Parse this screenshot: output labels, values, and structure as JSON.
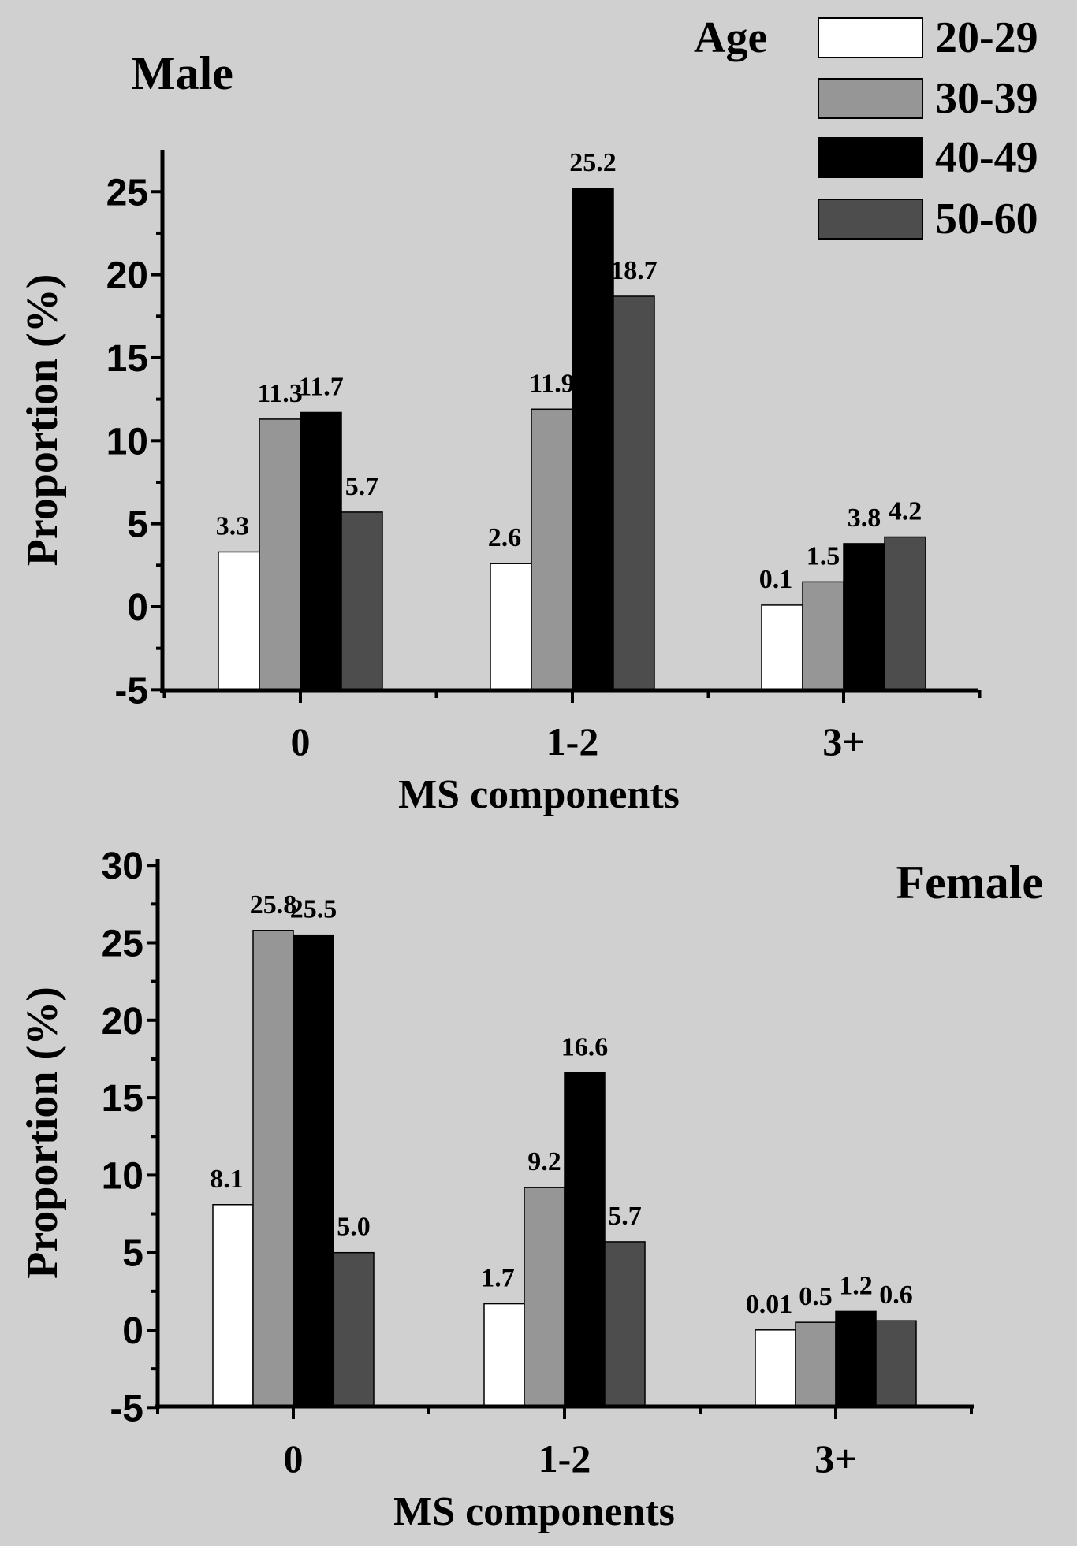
{
  "legend": {
    "title": "Age",
    "placement": "top-right",
    "entries": [
      {
        "label": "20-29",
        "color": "#ffffff"
      },
      {
        "label": "30-39",
        "color": "#969696"
      },
      {
        "label": "40-49",
        "color": "#000000"
      },
      {
        "label": "50-60",
        "color": "#4d4d4d"
      }
    ]
  },
  "chart_data": [
    {
      "type": "bar",
      "title": "Male",
      "xlabel": "MS components",
      "ylabel": "Proportion (%)",
      "categories": [
        "0",
        "1-2",
        "3+"
      ],
      "ylim": [
        -5,
        27
      ],
      "yticks": [
        -5,
        0,
        5,
        10,
        15,
        20,
        25
      ],
      "grid": false,
      "series": [
        {
          "name": "20-29",
          "values": [
            3.3,
            2.6,
            0.1
          ],
          "labels": [
            "3.3",
            "2.6",
            "0.1"
          ]
        },
        {
          "name": "30-39",
          "values": [
            11.3,
            11.9,
            1.5
          ],
          "labels": [
            "11.3",
            "11.9",
            "1.5"
          ]
        },
        {
          "name": "40-49",
          "values": [
            11.7,
            25.2,
            3.8
          ],
          "labels": [
            "11.7",
            "25.2",
            "3.8"
          ]
        },
        {
          "name": "50-60",
          "values": [
            5.7,
            18.7,
            4.2
          ],
          "labels": [
            "5.7",
            "18.7",
            "4.2"
          ]
        }
      ]
    },
    {
      "type": "bar",
      "title": "Female",
      "xlabel": "MS components",
      "ylabel": "Proportion (%)",
      "categories": [
        "0",
        "1-2",
        "3+"
      ],
      "ylim": [
        -5,
        30
      ],
      "yticks": [
        -5,
        0,
        5,
        10,
        15,
        20,
        25,
        30
      ],
      "grid": false,
      "series": [
        {
          "name": "20-29",
          "values": [
            8.1,
            1.7,
            0.01
          ],
          "labels": [
            "8.1",
            "1.7",
            "0.01"
          ]
        },
        {
          "name": "30-39",
          "values": [
            25.8,
            9.2,
            0.5
          ],
          "labels": [
            "25.8",
            "9.2",
            "0.5"
          ]
        },
        {
          "name": "40-49",
          "values": [
            25.5,
            16.6,
            1.2
          ],
          "labels": [
            "25.5",
            "16.6",
            "1.2"
          ]
        },
        {
          "name": "50-60",
          "values": [
            5.0,
            5.7,
            0.6
          ],
          "labels": [
            "5.0",
            "5.7",
            "0.6"
          ]
        }
      ]
    }
  ]
}
